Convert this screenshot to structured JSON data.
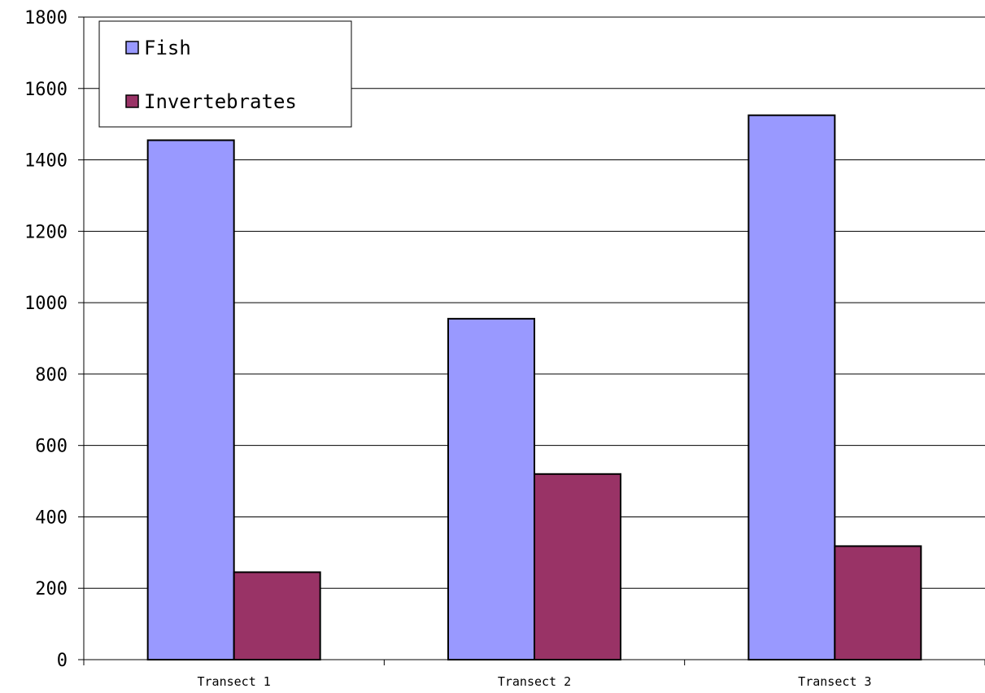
{
  "chart_data": {
    "type": "bar",
    "categories": [
      "Transect 1",
      "Transect 2",
      "Transect 3"
    ],
    "series": [
      {
        "name": "Fish",
        "values": [
          1455,
          955,
          1525
        ],
        "color": "#9999ff"
      },
      {
        "name": "Invertebrates",
        "values": [
          245,
          520,
          318
        ],
        "color": "#993366"
      }
    ],
    "yticks": [
      "0",
      "200",
      "400",
      "600",
      "800",
      "1000",
      "1200",
      "1400",
      "1600",
      "1800"
    ],
    "ylim": [
      0,
      1800
    ],
    "grid": true,
    "legend_position": "top-left"
  }
}
